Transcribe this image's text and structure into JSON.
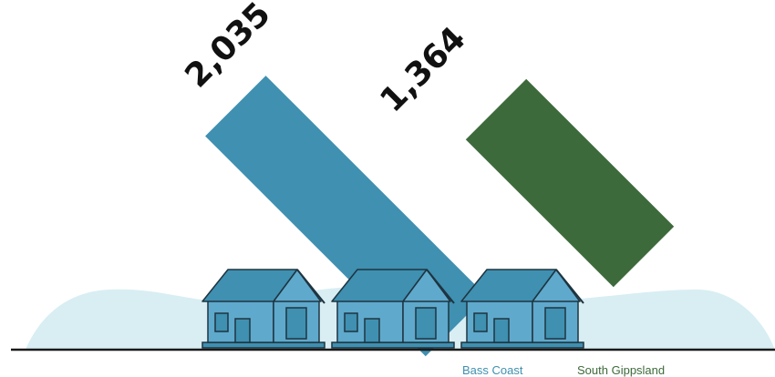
{
  "chart_data": {
    "type": "bar",
    "categories": [
      "Bass Coast",
      "South Gippsland"
    ],
    "values": [
      2035,
      1364
    ],
    "value_labels": [
      "2,035",
      "1,364"
    ],
    "colors": [
      "#3f90b1",
      "#3d6a3b"
    ],
    "legend": [
      {
        "label": "Bass Coast",
        "color": "#3f90b1"
      },
      {
        "label": "South Gippsland",
        "color": "#3d6a3b"
      }
    ],
    "legend_placement": "bottom-right",
    "grid": false,
    "title": "",
    "xlabel": "",
    "ylabel": ""
  },
  "scene": {
    "hill_color": "#d8eef3",
    "ground_color": "#1a1a1a",
    "house_wall_color": "#5fa9cc",
    "house_roof_color": "#3f90b1",
    "house_outline_color": "#1e3440",
    "house_count": 3
  }
}
